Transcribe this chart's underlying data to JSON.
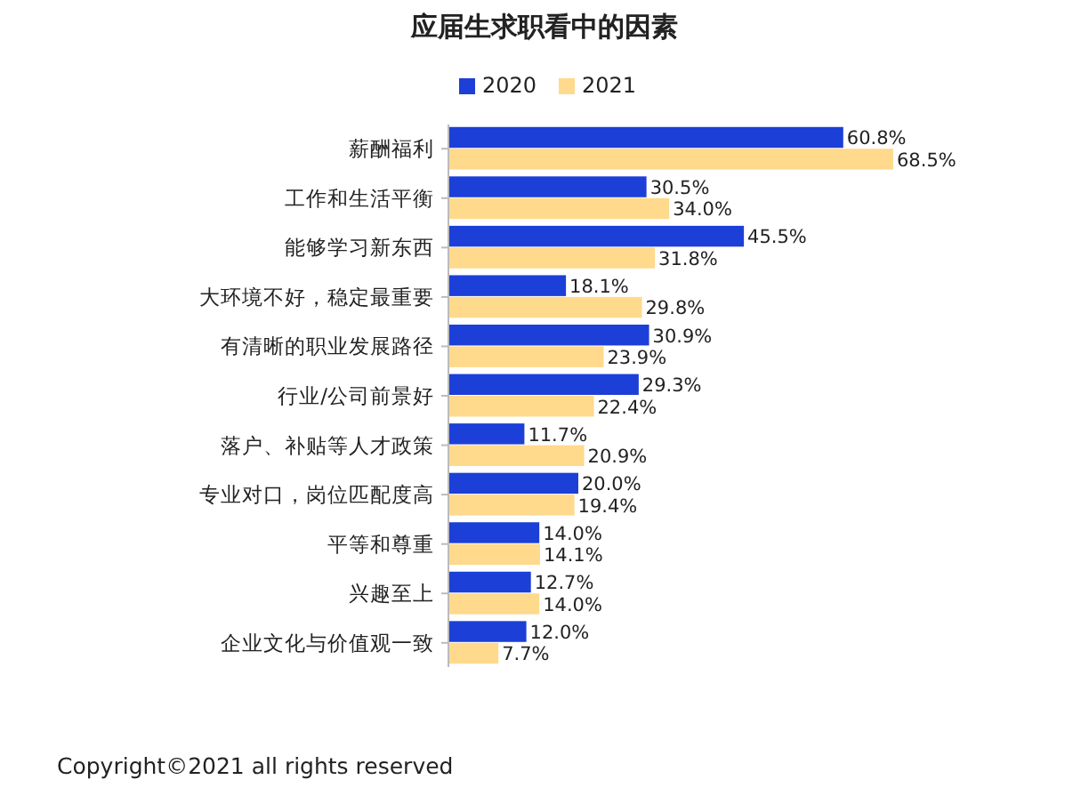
{
  "chart_data": {
    "type": "bar",
    "orientation": "horizontal",
    "title": "应届生求职看中的因素",
    "categories": [
      "薪酬福利",
      "工作和生活平衡",
      "能够学习新东西",
      "大环境不好，稳定最重要",
      "有清晰的职业发展路径",
      "行业/公司前景好",
      "落户、补贴等人才政策",
      "专业对口，岗位匹配度高",
      "平等和尊重",
      "兴趣至上",
      "企业文化与价值观一致"
    ],
    "series": [
      {
        "name": "2020",
        "color": "#1c3fd8",
        "values": [
          60.8,
          30.5,
          45.5,
          18.1,
          30.9,
          29.3,
          11.7,
          20.0,
          14.0,
          12.7,
          12.0
        ],
        "value_labels": [
          "60.8%",
          "30.5%",
          "45.5%",
          "18.1%",
          "30.9%",
          "29.3%",
          "11.7%",
          "20.0%",
          "14.0%",
          "12.7%",
          "12.0%"
        ]
      },
      {
        "name": "2021",
        "color": "#ffd98c",
        "values": [
          68.5,
          34.0,
          31.8,
          29.8,
          23.9,
          22.4,
          20.9,
          19.4,
          14.1,
          14.0,
          7.7
        ],
        "value_labels": [
          "68.5%",
          "34.0%",
          "31.8%",
          "29.8%",
          "23.9%",
          "22.4%",
          "20.9%",
          "19.4%",
          "14.1%",
          "14.0%",
          "7.7%"
        ]
      }
    ],
    "legend": "top",
    "annotations": [
      "Copyright©2021 all rights reserved"
    ]
  }
}
